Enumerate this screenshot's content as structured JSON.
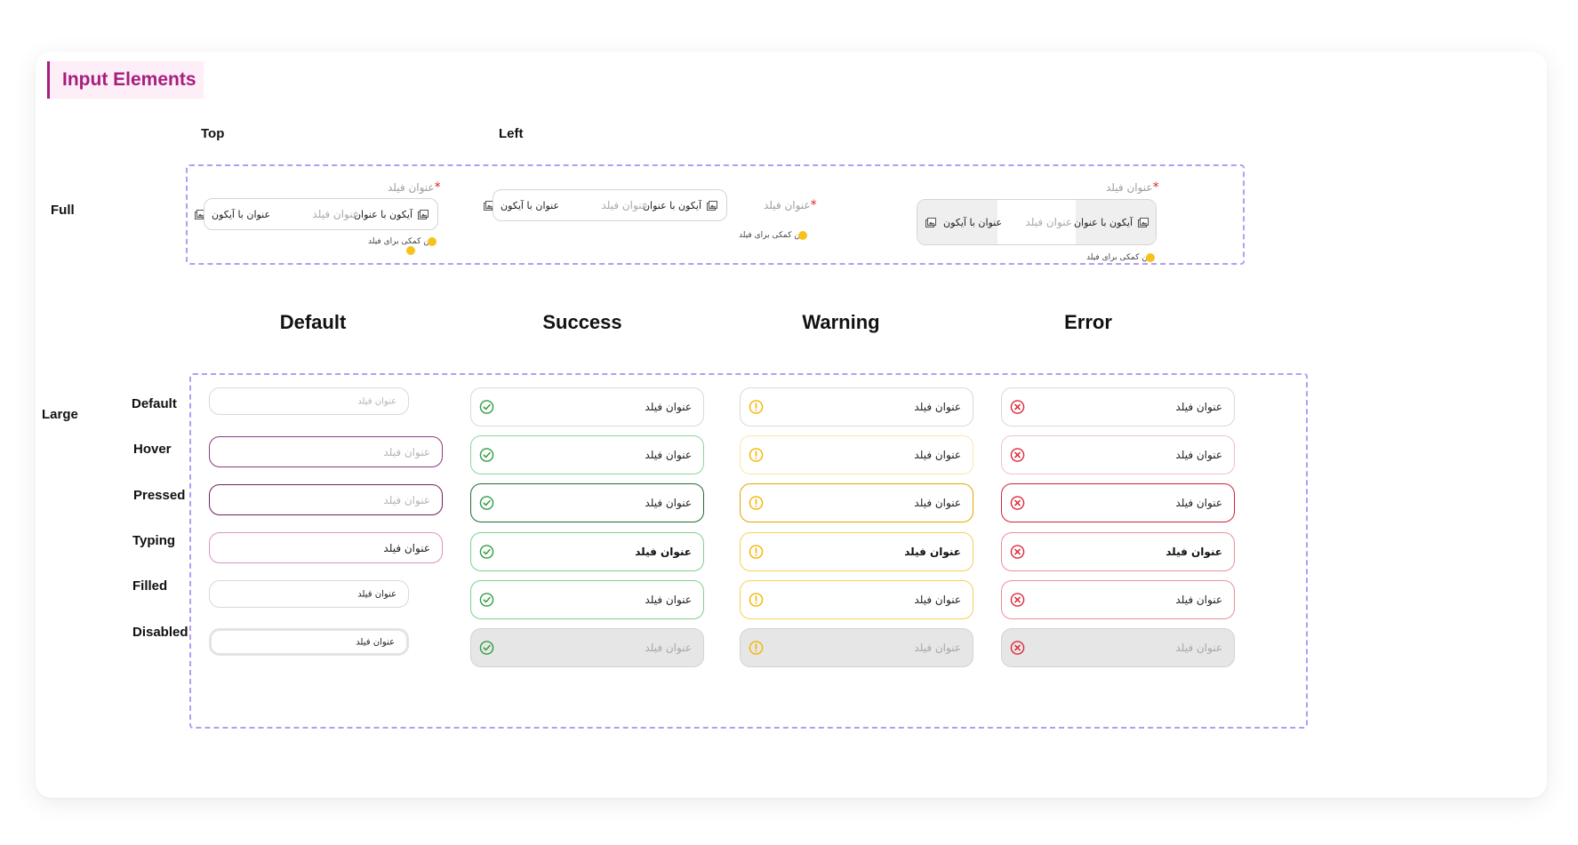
{
  "title": "Input Elements",
  "layout_labels": {
    "top": "Top",
    "left": "Left",
    "full": "Full",
    "large": "Large"
  },
  "full_fields": {
    "field_title": "عنوان فیلد",
    "required_star": "*",
    "icon_with_title": "آیکون با عنوان",
    "title_with_icon": "عنوان با آیکون",
    "placeholder": "عنوان فیلد",
    "help_text": "متن کمکی برای فیلد"
  },
  "columns": [
    "Default",
    "Success",
    "Warning",
    "Error"
  ],
  "states": [
    "Default",
    "Hover",
    "Pressed",
    "Typing",
    "Filled",
    "Disabled"
  ],
  "input_text": "عنوان فیلد",
  "icons": {
    "success": "check-circle-icon",
    "warning": "exclamation-circle-icon",
    "error": "x-circle-icon",
    "image": "image-icon"
  },
  "colors": {
    "brand": "#a61e7e",
    "dashed_outline": "#b59cf3",
    "success": "#2f9e44",
    "warning": "#f5b400",
    "error": "#d92d3a",
    "help_dot": "#f7c31a",
    "required": "#e02424",
    "disabled_fill": "#e6e6e6"
  }
}
